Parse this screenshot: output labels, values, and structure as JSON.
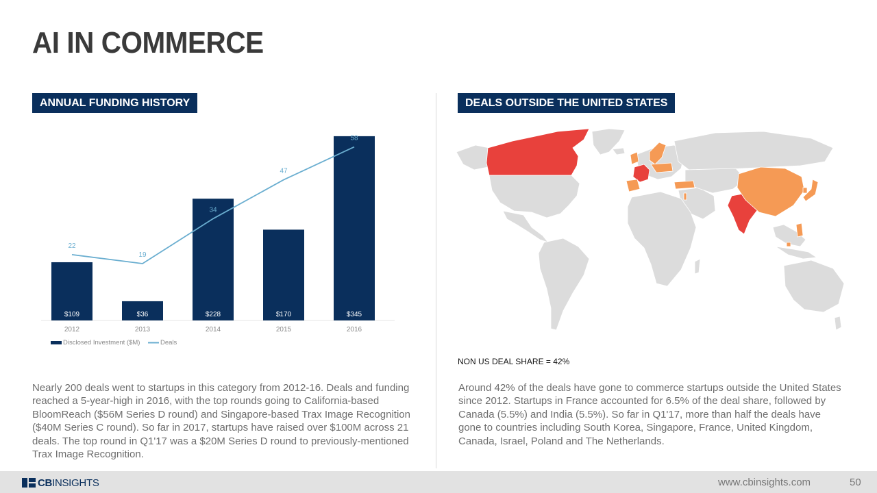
{
  "page": {
    "title": "AI IN COMMERCE",
    "page_number": "50"
  },
  "left": {
    "header": "ANNUAL FUNDING HISTORY",
    "paragraph": "Nearly 200 deals went to startups in this category from 2012-16. Deals and funding reached a 5-year-high in 2016, with the top rounds going to California-based BloomReach ($56M Series D round) and Singapore-based Trax Image Recognition ($40M Series C round). So far in 2017, startups have raised over $100M across 21 deals. The top round in Q1'17 was a $20M Series D round to previously-mentioned Trax Image Recognition."
  },
  "right": {
    "header": "DEALS OUTSIDE THE UNITED STATES",
    "caption": "NON US DEAL SHARE = 42%",
    "paragraph": "Around 42% of the deals have gone to commerce startups outside the United States since 2012. Startups in France accounted for 6.5% of the deal share, followed by Canada (5.5%) and India (5.5%). So far in Q1'17, more than half the deals have gone to countries including South Korea, Singapore, France, United Kingdom, Canada, Israel, Poland and The Netherlands."
  },
  "footer": {
    "logo_bold": "CB",
    "logo_thin": "INSIGHTS",
    "url": "www.cbinsights.com"
  },
  "colors": {
    "navy": "#0a2f5c",
    "line": "#6aaed0",
    "high_share": "#e8413c",
    "mid_share": "#f59a55",
    "land": "#dcdcdc"
  },
  "chart_data": {
    "type": "bar",
    "categories": [
      "2012",
      "2013",
      "2014",
      "2015",
      "2016"
    ],
    "series": [
      {
        "name": "Disclosed Investment ($M)",
        "type": "bar",
        "values": [
          109,
          36,
          228,
          170,
          345
        ],
        "labels": [
          "$109",
          "$36",
          "$228",
          "$170",
          "$345"
        ]
      },
      {
        "name": "Deals",
        "type": "line",
        "values": [
          22,
          19,
          34,
          47,
          58
        ]
      }
    ],
    "legend": "bottom-left"
  }
}
